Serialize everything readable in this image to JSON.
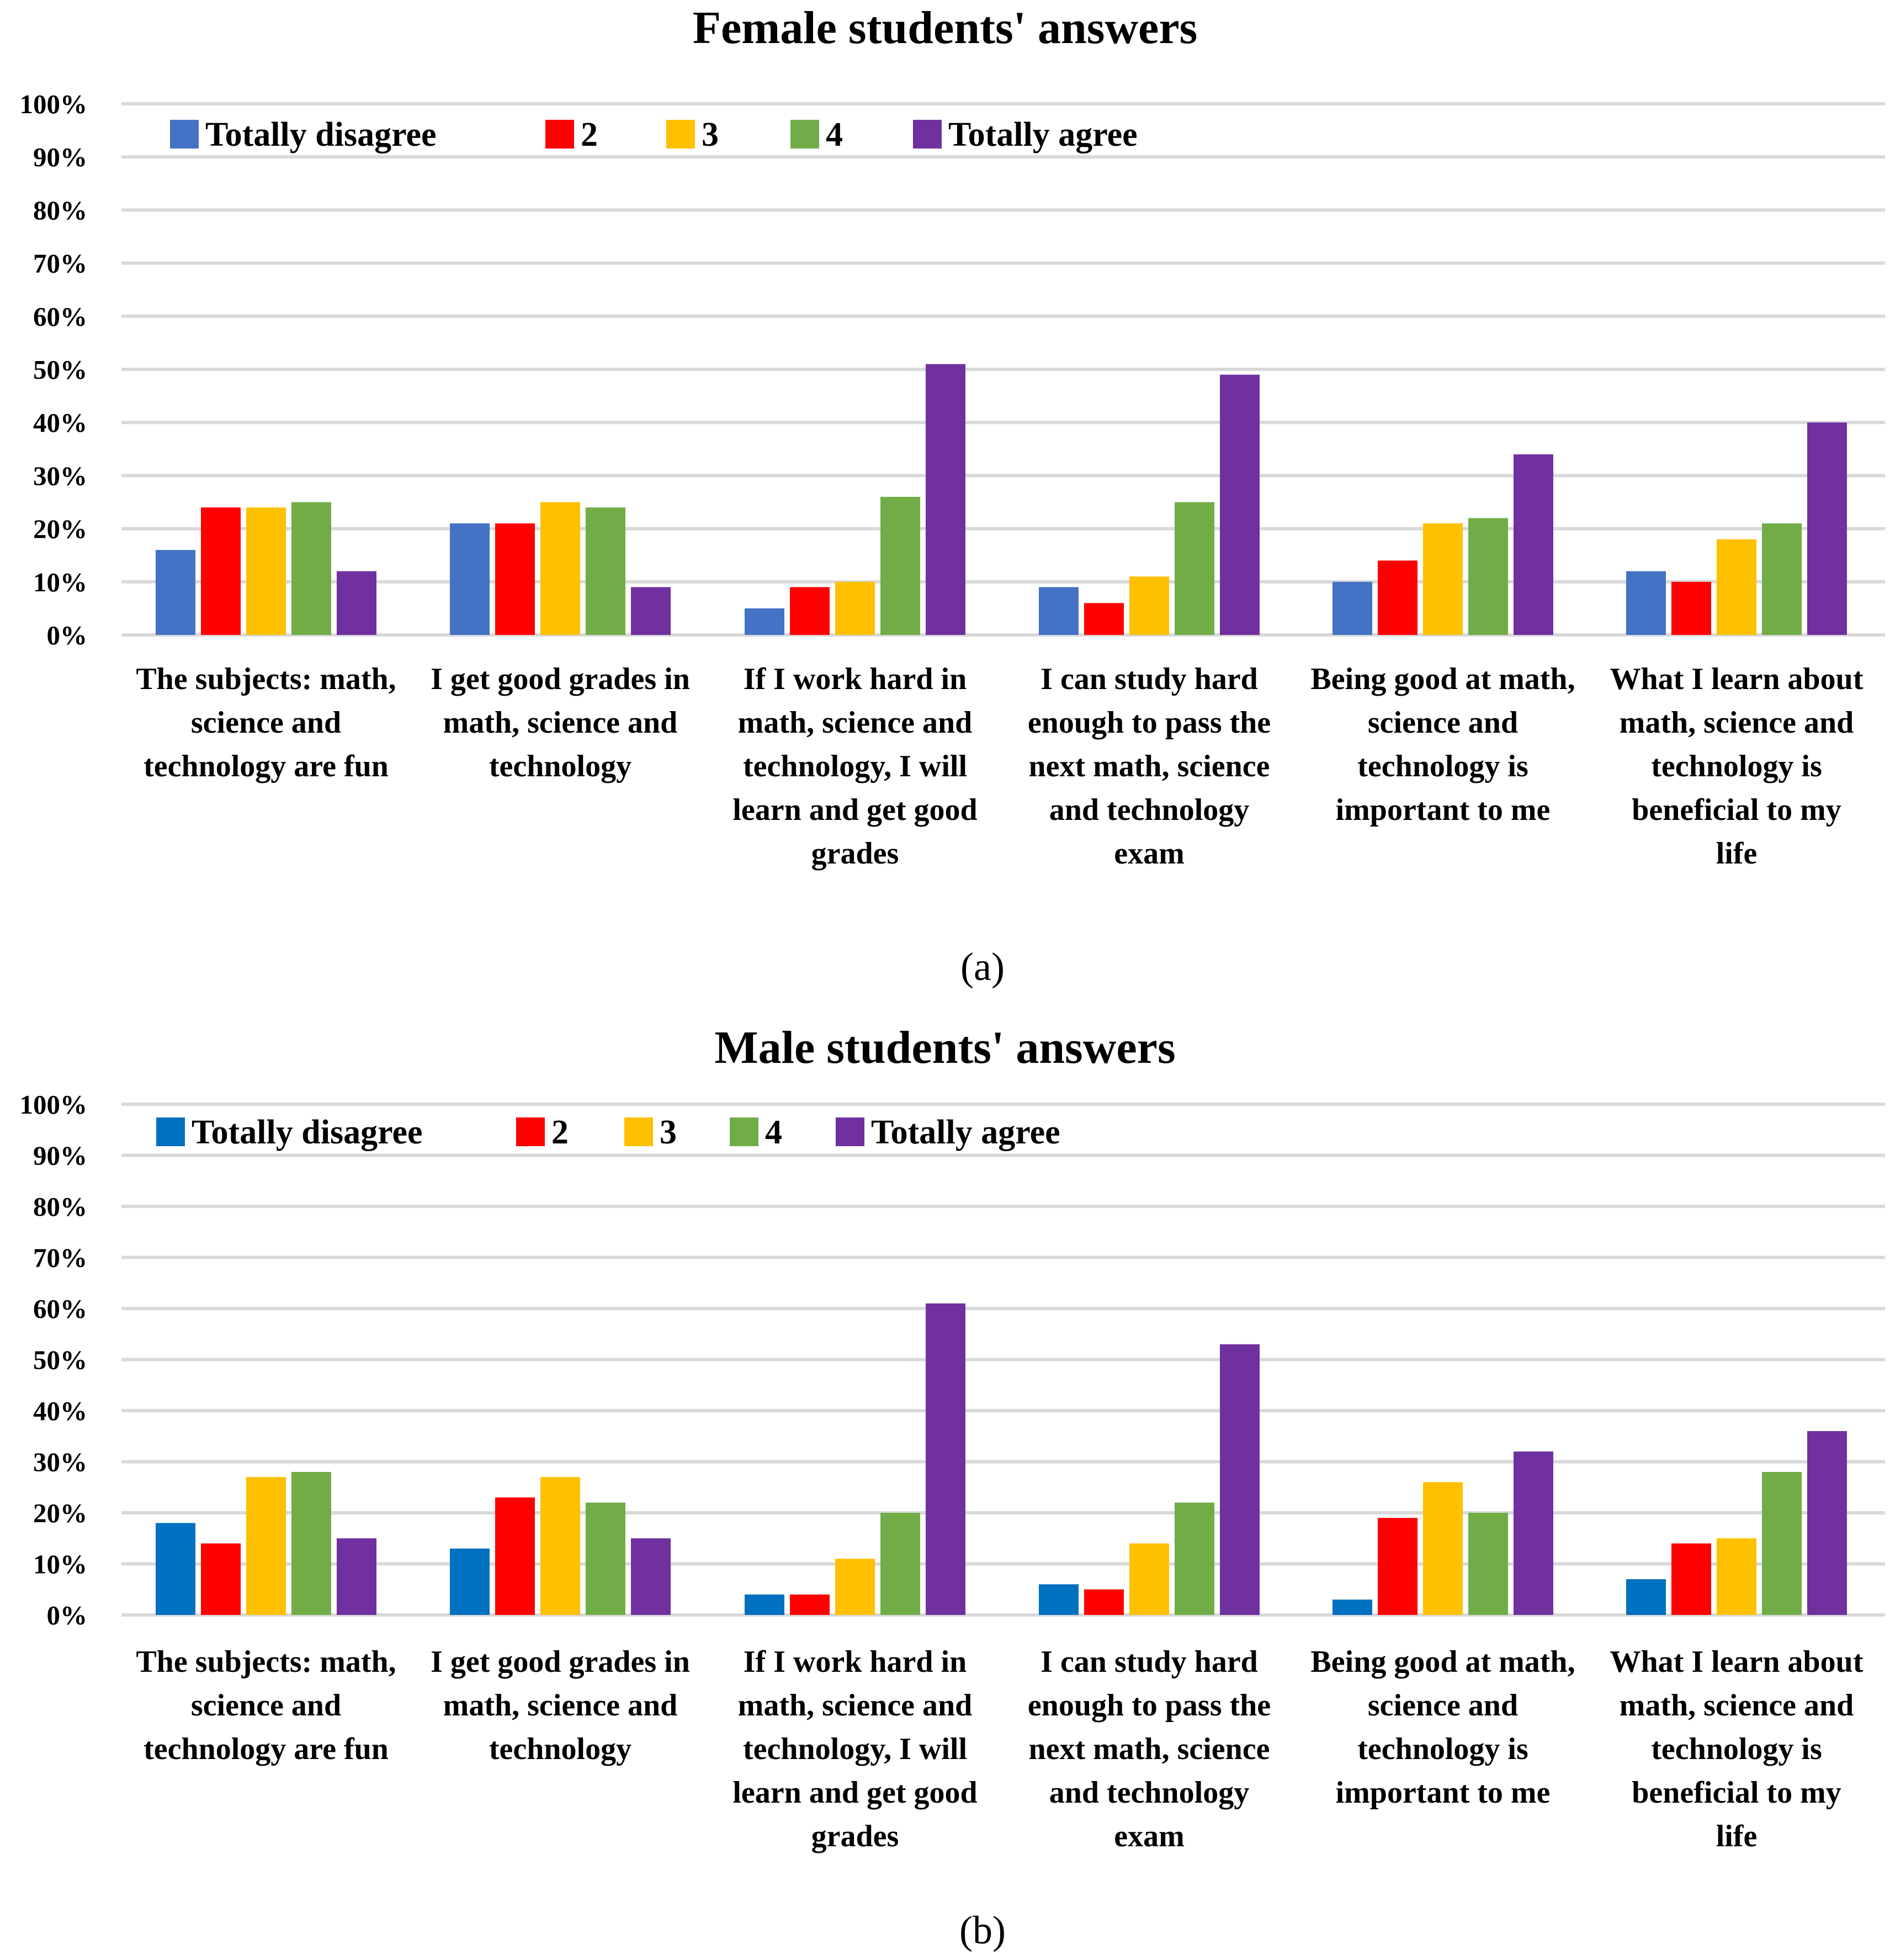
{
  "chart_data": [
    {
      "type": "bar",
      "title": "Female students' answers",
      "panel_label": "(a)",
      "ylim": [
        0,
        100
      ],
      "y_ticks": [
        "0%",
        "10%",
        "20%",
        "30%",
        "40%",
        "50%",
        "60%",
        "70%",
        "80%",
        "90%",
        "100%"
      ],
      "grid": true,
      "legend_position": "top",
      "categories": [
        "The subjects: math, science and technology are fun",
        "I get good grades in math, science and technology",
        "If I work hard in math, science and technology, I will learn and get good grades",
        "I can study hard enough to pass the next math, science and technology exam",
        "Being good at math, science and technology is important to me",
        "What I learn about math, science and technology is beneficial to my life"
      ],
      "category_lines": [
        [
          "The subjects: math,",
          "science and",
          "technology are fun"
        ],
        [
          "I get good grades in",
          "math, science and",
          "technology"
        ],
        [
          "If I work hard in",
          "math, science and",
          "technology, I will",
          "learn and get good",
          "grades"
        ],
        [
          "I can study hard",
          "enough to pass the",
          "next math, science",
          "and technology",
          "exam"
        ],
        [
          "Being good at math,",
          "science and",
          "technology is",
          "important to me"
        ],
        [
          "What I learn about",
          "math, science and",
          "technology is",
          "beneficial to my",
          "life"
        ]
      ],
      "series": [
        {
          "name": "Totally disagree",
          "color": "#4472C4",
          "values": [
            16,
            21,
            5,
            9,
            10,
            12
          ]
        },
        {
          "name": "2",
          "color": "#FF0000",
          "values": [
            24,
            21,
            9,
            6,
            14,
            10
          ]
        },
        {
          "name": "3",
          "color": "#FFC000",
          "values": [
            24,
            25,
            10,
            11,
            21,
            18
          ]
        },
        {
          "name": "4",
          "color": "#70AD47",
          "values": [
            25,
            24,
            26,
            25,
            22,
            21
          ]
        },
        {
          "name": "Totally agree",
          "color": "#7030A0",
          "values": [
            12,
            9,
            51,
            49,
            34,
            40
          ]
        }
      ]
    },
    {
      "type": "bar",
      "title": "Male students' answers",
      "panel_label": "(b)",
      "ylim": [
        0,
        100
      ],
      "y_ticks": [
        "0%",
        "10%",
        "20%",
        "30%",
        "40%",
        "50%",
        "60%",
        "70%",
        "80%",
        "90%",
        "100%"
      ],
      "grid": true,
      "legend_position": "top",
      "categories": [
        "The subjects: math, science and technology are fun",
        "I get good grades in math, science and technology",
        "If I work hard in math, science and technology, I will learn and get good grades",
        "I can study hard enough to pass the next math, science and technology exam",
        "Being good at math, science and technology is important to me",
        "What I learn about math, science and technology is beneficial to my life"
      ],
      "category_lines": [
        [
          "The subjects: math,",
          "science and",
          "technology are fun"
        ],
        [
          "I get good grades in",
          "math, science and",
          "technology"
        ],
        [
          "If I work hard in",
          "math, science and",
          "technology, I will",
          "learn and get good",
          "grades"
        ],
        [
          "I can study hard",
          "enough to pass the",
          "next math, science",
          "and technology",
          "exam"
        ],
        [
          "Being good at math,",
          "science and",
          "technology is",
          "important to me"
        ],
        [
          "What I learn about",
          "math, science and",
          "technology is",
          "beneficial to my",
          "life"
        ]
      ],
      "series": [
        {
          "name": "Totally disagree",
          "color": "#0070C0",
          "values": [
            18,
            13,
            4,
            6,
            3,
            7
          ]
        },
        {
          "name": "2",
          "color": "#FF0000",
          "values": [
            14,
            23,
            4,
            5,
            19,
            14
          ]
        },
        {
          "name": "3",
          "color": "#FFC000",
          "values": [
            27,
            27,
            11,
            14,
            26,
            15
          ]
        },
        {
          "name": "4",
          "color": "#70AD47",
          "values": [
            28,
            22,
            20,
            22,
            20,
            28
          ]
        },
        {
          "name": "Totally agree",
          "color": "#7030A0",
          "values": [
            15,
            15,
            61,
            53,
            32,
            36
          ]
        }
      ]
    }
  ]
}
